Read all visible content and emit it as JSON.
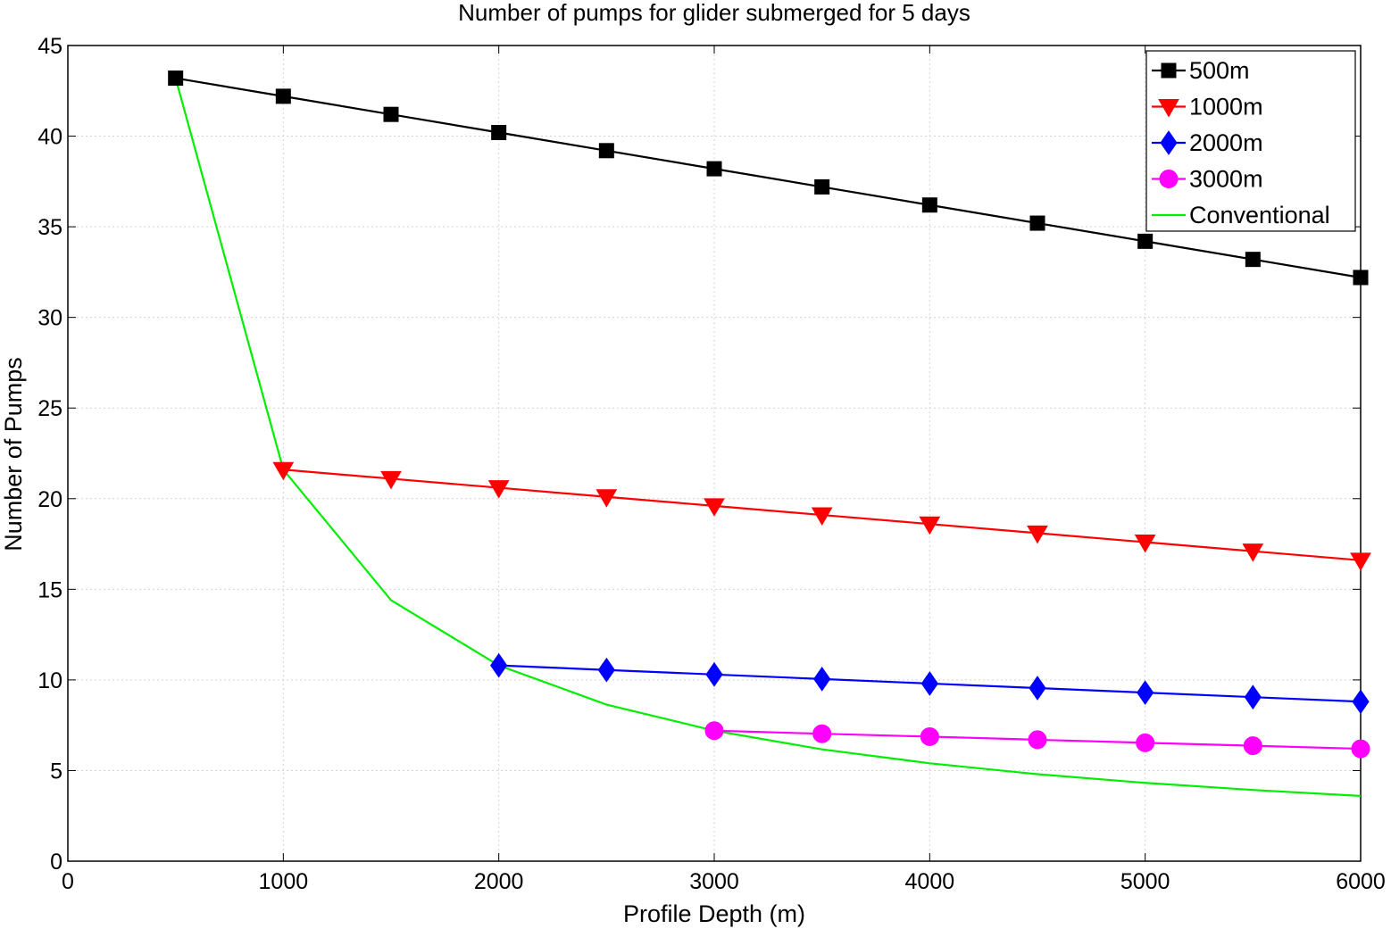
{
  "chart_data": {
    "type": "line",
    "title": "Number of pumps for glider submerged for 5 days",
    "xlabel": "Profile Depth (m)",
    "ylabel": "Number of Pumps",
    "xlim": [
      0,
      6000
    ],
    "ylim": [
      0,
      45
    ],
    "xticks": [
      0,
      1000,
      2000,
      3000,
      4000,
      5000,
      6000
    ],
    "yticks": [
      0,
      5,
      10,
      15,
      20,
      25,
      30,
      35,
      40,
      45
    ],
    "grid": true,
    "legend_position": "top-right",
    "series": [
      {
        "name": "500m",
        "color": "#000000",
        "marker": "square",
        "x": [
          500,
          1000,
          1500,
          2000,
          2500,
          3000,
          3500,
          4000,
          4500,
          5000,
          5500,
          6000
        ],
        "y": [
          43.2,
          42.2,
          41.2,
          40.2,
          39.2,
          38.2,
          37.2,
          36.2,
          35.2,
          34.2,
          33.2,
          32.2
        ]
      },
      {
        "name": "1000m",
        "color": "#ff0000",
        "marker": "triangle-down",
        "x": [
          1000,
          1500,
          2000,
          2500,
          3000,
          3500,
          4000,
          4500,
          5000,
          5500,
          6000
        ],
        "y": [
          21.6,
          21.1,
          20.6,
          20.1,
          19.6,
          19.1,
          18.6,
          18.1,
          17.6,
          17.1,
          16.6
        ]
      },
      {
        "name": "2000m",
        "color": "#0000ff",
        "marker": "diamond",
        "x": [
          2000,
          2500,
          3000,
          3500,
          4000,
          4500,
          5000,
          5500,
          6000
        ],
        "y": [
          10.8,
          10.55,
          10.3,
          10.05,
          9.8,
          9.55,
          9.3,
          9.05,
          8.8
        ]
      },
      {
        "name": "3000m",
        "color": "#ff00ff",
        "marker": "circle",
        "x": [
          3000,
          3500,
          4000,
          4500,
          5000,
          5500,
          6000
        ],
        "y": [
          7.2,
          7.03,
          6.87,
          6.7,
          6.53,
          6.37,
          6.2
        ]
      },
      {
        "name": "Conventional",
        "color": "#00ee00",
        "marker": "none",
        "x": [
          500,
          1000,
          1500,
          2000,
          2500,
          3000,
          3500,
          4000,
          4500,
          5000,
          5500,
          6000
        ],
        "y": [
          43.2,
          21.6,
          14.4,
          10.8,
          8.64,
          7.2,
          6.17,
          5.4,
          4.8,
          4.32,
          3.93,
          3.6
        ]
      }
    ]
  }
}
